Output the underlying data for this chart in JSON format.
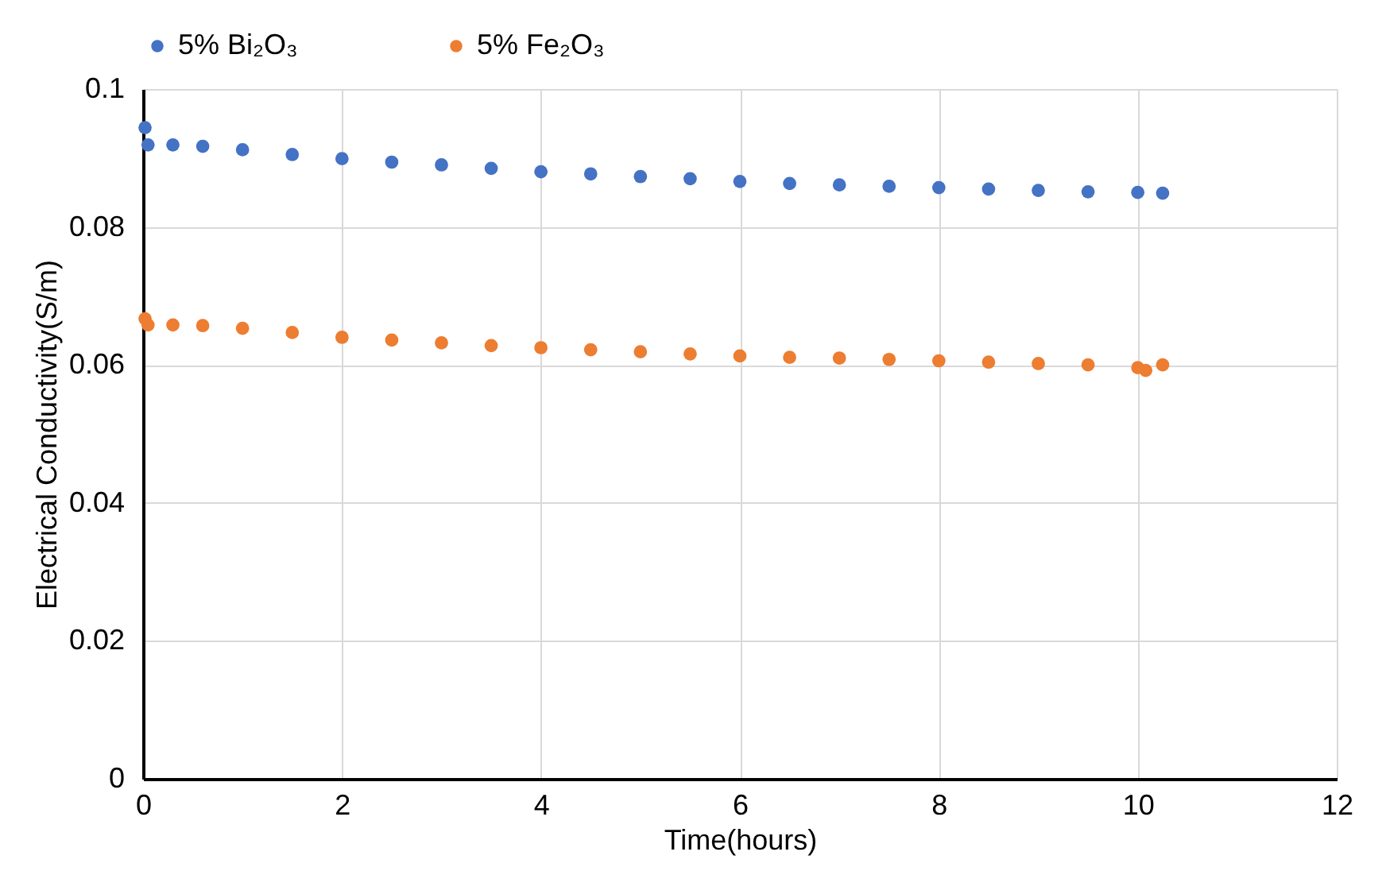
{
  "chart_data": {
    "type": "scatter",
    "xlabel": "Time(hours)",
    "ylabel": "Electrical Conductivity(S/m)",
    "xlim": [
      0,
      12
    ],
    "xticks": [
      0,
      2,
      4,
      6,
      8,
      10,
      12
    ],
    "ylim": [
      0,
      0.1
    ],
    "yticks": [
      0,
      0.02,
      0.04,
      0.06,
      0.08,
      0.1
    ],
    "grid": true,
    "legend": "top",
    "marker": "circle",
    "series": [
      {
        "name": "5% Bi₂O₃",
        "color": "#4472c4",
        "x": [
          0.02,
          0.05,
          0.3,
          0.6,
          1.0,
          1.5,
          2.0,
          2.5,
          3.0,
          3.5,
          4.0,
          4.5,
          5.0,
          5.5,
          6.0,
          6.5,
          7.0,
          7.5,
          8.0,
          8.5,
          9.0,
          9.5,
          10.0,
          10.25
        ],
        "values": [
          0.0944,
          0.0919,
          0.0919,
          0.0917,
          0.0912,
          0.0905,
          0.0899,
          0.0894,
          0.089,
          0.0885,
          0.088,
          0.0877,
          0.0873,
          0.087,
          0.0866,
          0.0863,
          0.0861,
          0.0859,
          0.0857,
          0.0855,
          0.0853,
          0.0851,
          0.085,
          0.0849
        ]
      },
      {
        "name": "5% Fe₂O₃",
        "color": "#ed7d31",
        "x": [
          0.02,
          0.05,
          0.3,
          0.6,
          1.0,
          1.5,
          2.0,
          2.5,
          3.0,
          3.5,
          4.0,
          4.5,
          5.0,
          5.5,
          6.0,
          6.5,
          7.0,
          7.5,
          8.0,
          8.5,
          9.0,
          9.5,
          10.0,
          10.08,
          10.25
        ],
        "values": [
          0.0667,
          0.0658,
          0.0658,
          0.0657,
          0.0653,
          0.0647,
          0.064,
          0.0636,
          0.0632,
          0.0628,
          0.0625,
          0.0622,
          0.0619,
          0.0616,
          0.0613,
          0.0611,
          0.061,
          0.0608,
          0.0606,
          0.0604,
          0.0602,
          0.06,
          0.0596,
          0.0592,
          0.06
        ]
      }
    ]
  }
}
